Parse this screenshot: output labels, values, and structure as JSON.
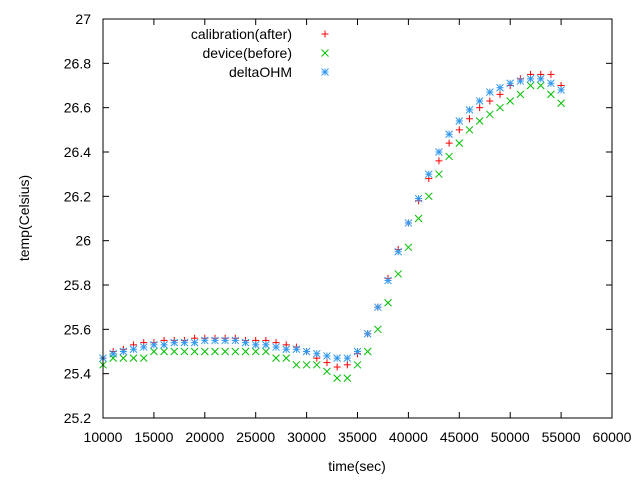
{
  "chart_data": {
    "type": "scatter",
    "title": "",
    "xlabel": "time(sec)",
    "ylabel": "temp(Celsius)",
    "xlim": [
      10000,
      60000
    ],
    "ylim": [
      25.2,
      27
    ],
    "x_ticks": [
      "10000",
      "15000",
      "20000",
      "25000",
      "30000",
      "35000",
      "40000",
      "45000",
      "50000",
      "55000",
      "60000"
    ],
    "y_ticks": [
      "25.2",
      "25.4",
      "25.6",
      "25.8",
      "26",
      "26.2",
      "26.4",
      "26.6",
      "26.8",
      "27"
    ],
    "grid": false,
    "legend_position": "top-left",
    "series": [
      {
        "name": "calibration(after)",
        "marker": "plus",
        "color": "#ff0000",
        "x": [
          10000,
          11000,
          12000,
          13000,
          14000,
          15000,
          16000,
          17000,
          18000,
          19000,
          20000,
          21000,
          22000,
          23000,
          24000,
          25000,
          26000,
          27000,
          28000,
          29000,
          30000,
          31000,
          32000,
          33000,
          34000,
          35000,
          36000,
          37000,
          38000,
          39000,
          40000,
          41000,
          42000,
          43000,
          44000,
          45000,
          46000,
          47000,
          48000,
          49000,
          50000,
          51000,
          52000,
          53000,
          54000,
          55000
        ],
        "y": [
          25.47,
          25.5,
          25.51,
          25.53,
          25.54,
          25.54,
          25.55,
          25.55,
          25.55,
          25.56,
          25.56,
          25.56,
          25.56,
          25.56,
          25.55,
          25.55,
          25.55,
          25.54,
          25.53,
          25.52,
          25.5,
          25.47,
          25.45,
          25.43,
          25.44,
          25.49,
          25.58,
          25.7,
          25.83,
          25.96,
          26.08,
          26.18,
          26.28,
          26.36,
          26.44,
          26.5,
          26.55,
          26.6,
          26.63,
          26.66,
          26.7,
          26.73,
          26.75,
          26.75,
          26.75,
          26.7
        ]
      },
      {
        "name": "device(before)",
        "marker": "cross",
        "color": "#00c000",
        "x": [
          10000,
          11000,
          12000,
          13000,
          14000,
          15000,
          16000,
          17000,
          18000,
          19000,
          20000,
          21000,
          22000,
          23000,
          24000,
          25000,
          26000,
          27000,
          28000,
          29000,
          30000,
          31000,
          32000,
          33000,
          34000,
          35000,
          36000,
          37000,
          38000,
          39000,
          40000,
          41000,
          42000,
          43000,
          44000,
          45000,
          46000,
          47000,
          48000,
          49000,
          50000,
          51000,
          52000,
          53000,
          54000,
          55000
        ],
        "y": [
          25.44,
          25.47,
          25.47,
          25.47,
          25.47,
          25.5,
          25.5,
          25.5,
          25.5,
          25.5,
          25.5,
          25.5,
          25.5,
          25.5,
          25.5,
          25.5,
          25.5,
          25.47,
          25.47,
          25.44,
          25.44,
          25.44,
          25.41,
          25.38,
          25.38,
          25.44,
          25.5,
          25.6,
          25.72,
          25.85,
          25.97,
          26.1,
          26.2,
          26.3,
          26.38,
          26.44,
          26.5,
          26.54,
          26.57,
          26.6,
          26.63,
          26.66,
          26.7,
          26.7,
          26.66,
          26.62
        ]
      },
      {
        "name": "deltaOHM",
        "marker": "star",
        "color": "#3399ee",
        "x": [
          10000,
          11000,
          12000,
          13000,
          14000,
          15000,
          16000,
          17000,
          18000,
          19000,
          20000,
          21000,
          22000,
          23000,
          24000,
          25000,
          26000,
          27000,
          28000,
          29000,
          30000,
          31000,
          32000,
          33000,
          34000,
          35000,
          36000,
          37000,
          38000,
          39000,
          40000,
          41000,
          42000,
          43000,
          44000,
          45000,
          46000,
          47000,
          48000,
          49000,
          50000,
          51000,
          52000,
          53000,
          54000,
          55000
        ],
        "y": [
          25.47,
          25.49,
          25.5,
          25.51,
          25.52,
          25.53,
          25.53,
          25.54,
          25.54,
          25.54,
          25.55,
          25.55,
          25.55,
          25.55,
          25.54,
          25.53,
          25.53,
          25.52,
          25.51,
          25.51,
          25.5,
          25.49,
          25.48,
          25.47,
          25.47,
          25.5,
          25.58,
          25.7,
          25.82,
          25.95,
          26.08,
          26.19,
          26.3,
          26.4,
          26.48,
          26.54,
          26.59,
          26.63,
          26.67,
          26.69,
          26.71,
          26.72,
          26.73,
          26.73,
          26.71,
          26.68
        ]
      }
    ]
  }
}
